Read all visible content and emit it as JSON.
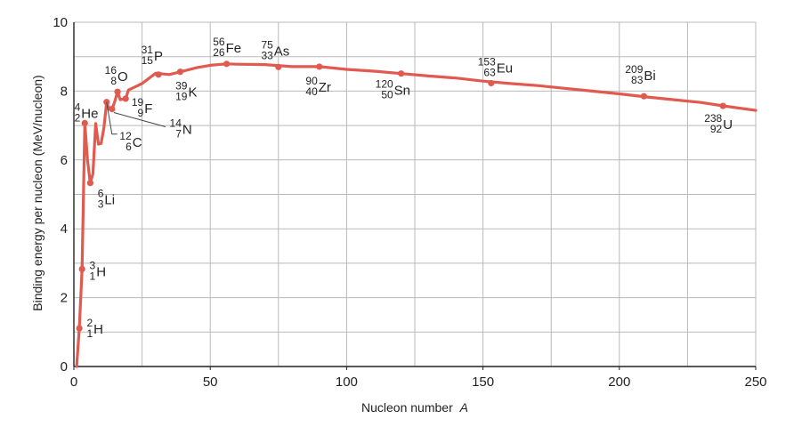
{
  "chart_data": {
    "type": "line",
    "xlabel": "Nucleon number",
    "xlabel_var": "A",
    "ylabel": "Binding energy per nucleon (MeV/nucleon)",
    "xlim": [
      0,
      250
    ],
    "ylim": [
      0,
      10
    ],
    "xticks": [
      "0",
      "50",
      "100",
      "150",
      "200",
      "250"
    ],
    "yticks": [
      "0",
      "2",
      "4",
      "6",
      "8",
      "10"
    ],
    "grid": true,
    "line_color": "#e05a4f",
    "grid_color": "#b9b9b9",
    "curve": {
      "x": [
        1,
        2,
        3,
        4,
        5,
        6,
        7,
        8,
        9,
        10,
        11,
        12,
        13,
        14,
        15,
        16,
        17,
        18,
        19,
        20,
        25,
        30,
        35,
        40,
        45,
        50,
        56,
        60,
        70,
        80,
        90,
        100,
        110,
        120,
        130,
        140,
        150,
        160,
        170,
        180,
        190,
        200,
        210,
        220,
        230,
        238,
        250
      ],
      "y": [
        0.0,
        1.11,
        2.83,
        7.07,
        6.0,
        5.33,
        5.6,
        7.06,
        6.46,
        6.48,
        6.93,
        7.68,
        7.47,
        7.48,
        7.7,
        7.98,
        7.75,
        7.77,
        7.78,
        8.03,
        8.22,
        8.52,
        8.48,
        8.58,
        8.68,
        8.75,
        8.79,
        8.78,
        8.77,
        8.71,
        8.71,
        8.63,
        8.58,
        8.51,
        8.44,
        8.38,
        8.29,
        8.22,
        8.16,
        8.08,
        8.0,
        7.92,
        7.83,
        7.75,
        7.67,
        7.57,
        7.44
      ]
    },
    "points": [
      {
        "A": 2,
        "y": 1.11,
        "sym": "H",
        "mass": "2",
        "z": "1"
      },
      {
        "A": 3,
        "y": 2.83,
        "sym": "H",
        "mass": "3",
        "z": "1"
      },
      {
        "A": 4,
        "y": 7.07,
        "sym": "He",
        "mass": "4",
        "z": "2"
      },
      {
        "A": 6,
        "y": 5.33,
        "sym": "Li",
        "mass": "6",
        "z": "3"
      },
      {
        "A": 12,
        "y": 7.68,
        "sym": "C",
        "mass": "12",
        "z": "6"
      },
      {
        "A": 14,
        "y": 7.48,
        "sym": "N",
        "mass": "14",
        "z": "7"
      },
      {
        "A": 16,
        "y": 7.98,
        "sym": "O",
        "mass": "16",
        "z": "8"
      },
      {
        "A": 19,
        "y": 7.78,
        "sym": "F",
        "mass": "19",
        "z": "9"
      },
      {
        "A": 31,
        "y": 8.48,
        "sym": "P",
        "mass": "31",
        "z": "15"
      },
      {
        "A": 39,
        "y": 8.56,
        "sym": "K",
        "mass": "39",
        "z": "19"
      },
      {
        "A": 56,
        "y": 8.79,
        "sym": "Fe",
        "mass": "56",
        "z": "26"
      },
      {
        "A": 75,
        "y": 8.7,
        "sym": "As",
        "mass": "75",
        "z": "33"
      },
      {
        "A": 90,
        "y": 8.71,
        "sym": "Zr",
        "mass": "90",
        "z": "40"
      },
      {
        "A": 120,
        "y": 8.51,
        "sym": "Sn",
        "mass": "120",
        "z": "50"
      },
      {
        "A": 153,
        "y": 8.23,
        "sym": "Eu",
        "mass": "153",
        "z": "63"
      },
      {
        "A": 209,
        "y": 7.85,
        "sym": "Bi",
        "mass": "209",
        "z": "83"
      },
      {
        "A": 238,
        "y": 7.57,
        "sym": "U",
        "mass": "238",
        "z": "92"
      }
    ]
  }
}
